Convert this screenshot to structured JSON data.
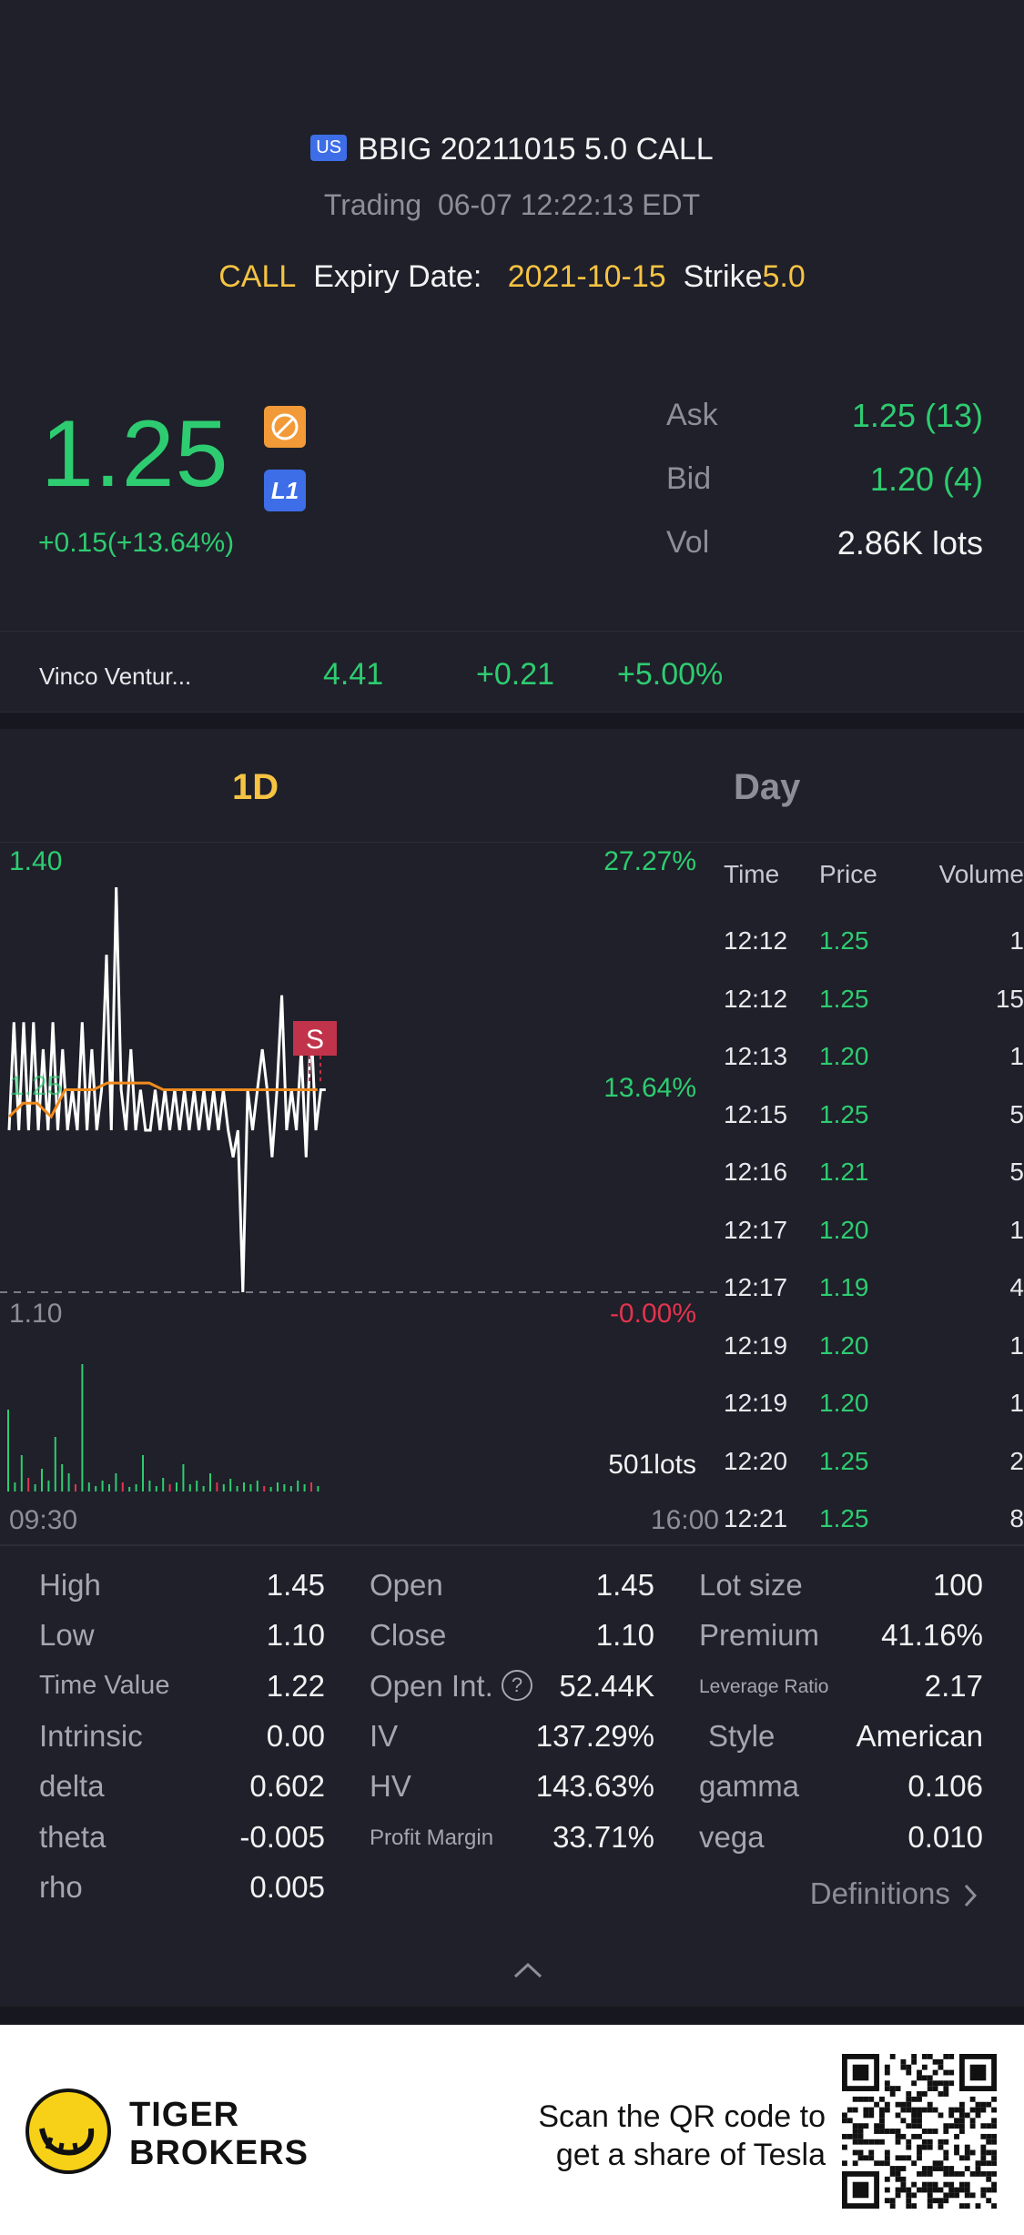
{
  "header": {
    "market_badge": "US",
    "title": "BBIG 20211015 5.0 CALL",
    "status": "Trading",
    "datetime": "06-07 12:22:13 EDT",
    "type": "CALL",
    "expiry_label": "Expiry Date:",
    "expiry_value": "2021-10-15",
    "strike_label": "Strike",
    "strike_value": "5.0"
  },
  "quote": {
    "price": "1.25",
    "change": "+0.15(+13.64%)",
    "ask_label": "Ask",
    "ask_value": "1.25 (13)",
    "bid_label": "Bid",
    "bid_value": "1.20 (4)",
    "vol_label": "Vol",
    "vol_value": "2.86K lots",
    "level_badge": "L1"
  },
  "underlying": {
    "name": "Vinco Ventur...",
    "price": "4.41",
    "change": "+0.21",
    "change_pct": "+5.00%"
  },
  "tabs": [
    {
      "label": "1D",
      "active": true
    },
    {
      "label": "Day",
      "active": false
    }
  ],
  "chart": {
    "price_high": "1.40",
    "pct_high": "27.27%",
    "price_mid": "1.25",
    "pct_mid": "13.64%",
    "price_low": "1.10",
    "pct_low": "-0.00%",
    "volume_label": "501lots",
    "time_start": "09:30",
    "time_end": "16:00",
    "marker": "S"
  },
  "chart_data": {
    "type": "line",
    "ylim": [
      1.1,
      1.4
    ],
    "series": [
      {
        "values": [
          1.22,
          1.3,
          1.22,
          1.3,
          1.22,
          1.3,
          1.22,
          1.28,
          1.22,
          1.3,
          1.22,
          1.28,
          1.22,
          1.25,
          1.22,
          1.3,
          1.22,
          1.28,
          1.22,
          1.25,
          1.35,
          1.22,
          1.4,
          1.25,
          1.22,
          1.28,
          1.22,
          1.25,
          1.22,
          1.22,
          1.25,
          1.22,
          1.25,
          1.22,
          1.25,
          1.22,
          1.25,
          1.22,
          1.25,
          1.22,
          1.25,
          1.22,
          1.25,
          1.22,
          1.25,
          1.22,
          1.2,
          1.22,
          1.1,
          1.25,
          1.22,
          1.25,
          1.28,
          1.25,
          1.2,
          1.25,
          1.32,
          1.22,
          1.25,
          1.22,
          1.28,
          1.2,
          1.3,
          1.22,
          1.25,
          1.25
        ]
      },
      {
        "values": [
          1.23,
          1.24,
          1.24,
          1.23,
          1.25,
          1.25,
          1.25,
          1.255,
          1.255,
          1.255,
          1.255,
          1.25,
          1.25,
          1.25,
          1.25,
          1.25,
          1.25,
          1.25,
          1.25,
          1.25,
          1.25,
          1.25,
          1.25
        ]
      }
    ]
  },
  "trades": {
    "headers": {
      "time": "Time",
      "price": "Price",
      "volume": "Volume"
    },
    "rows": [
      {
        "time": "12:12",
        "price": "1.25",
        "volume": "1"
      },
      {
        "time": "12:12",
        "price": "1.25",
        "volume": "15"
      },
      {
        "time": "12:13",
        "price": "1.20",
        "volume": "1"
      },
      {
        "time": "12:15",
        "price": "1.25",
        "volume": "5"
      },
      {
        "time": "12:16",
        "price": "1.21",
        "volume": "5"
      },
      {
        "time": "12:17",
        "price": "1.20",
        "volume": "1"
      },
      {
        "time": "12:17",
        "price": "1.19",
        "volume": "4"
      },
      {
        "time": "12:19",
        "price": "1.20",
        "volume": "1"
      },
      {
        "time": "12:19",
        "price": "1.20",
        "volume": "1"
      },
      {
        "time": "12:20",
        "price": "1.25",
        "volume": "2"
      },
      {
        "time": "12:21",
        "price": "1.25",
        "volume": "8"
      }
    ]
  },
  "stats": {
    "col1": [
      {
        "label": "High",
        "value": "1.45"
      },
      {
        "label": "Low",
        "value": "1.10"
      },
      {
        "label": "Time Value",
        "value": "1.22"
      },
      {
        "label": "Intrinsic",
        "value": "0.00"
      },
      {
        "label": "delta",
        "value": "0.602"
      },
      {
        "label": "theta",
        "value": "-0.005"
      },
      {
        "label": "rho",
        "value": "0.005"
      }
    ],
    "col2": [
      {
        "label": "Open",
        "value": "1.45"
      },
      {
        "label": "Close",
        "value": "1.10"
      },
      {
        "label": "Open Int.",
        "value": "52.44K"
      },
      {
        "label": "IV",
        "value": "137.29%"
      },
      {
        "label": "HV",
        "value": "143.63%"
      },
      {
        "label": "Profit Margin",
        "value": "33.71%"
      }
    ],
    "col3": [
      {
        "label": "Lot size",
        "value": "100"
      },
      {
        "label": "Premium",
        "value": "41.16%"
      },
      {
        "label": "Leverage Ratio",
        "value": "2.17"
      },
      {
        "label": "Style",
        "value": "American"
      },
      {
        "label": "gamma",
        "value": "0.106"
      },
      {
        "label": "vega",
        "value": "0.010"
      }
    ],
    "definitions": "Definitions"
  },
  "footer": {
    "brand_line1": "TIGER",
    "brand_line2": "BROKERS",
    "scan_line1": "Scan the QR code to",
    "scan_line2": "get a share of Tesla"
  },
  "colors": {
    "background": "#1f2029",
    "up_green": "#2ecc71",
    "accent_yellow": "#f6c343",
    "down_red": "#e2344f",
    "avg_line": "#f08c1e"
  }
}
